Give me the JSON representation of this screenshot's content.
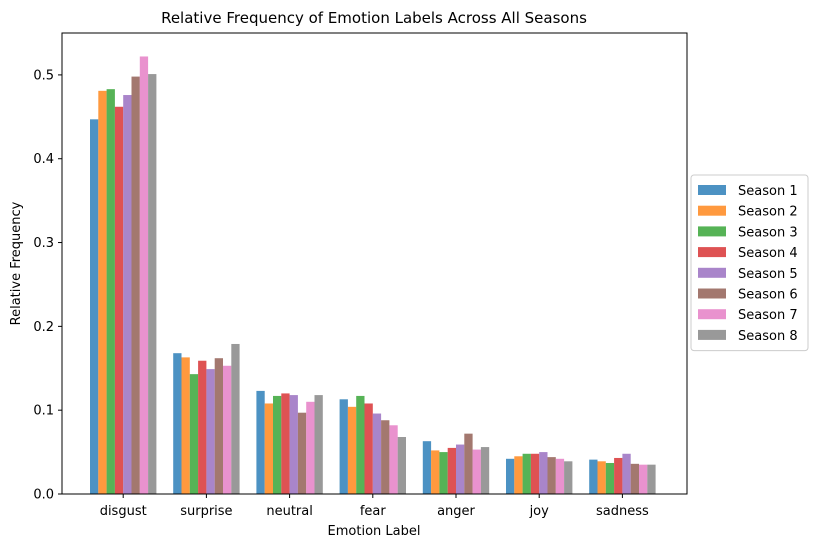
{
  "chart_data": {
    "type": "bar",
    "title": "Relative Frequency of Emotion Labels Across All Seasons",
    "xlabel": "Emotion Label",
    "ylabel": "Relative Frequency",
    "ylim": [
      0,
      0.55
    ],
    "yticks": [
      0.0,
      0.1,
      0.2,
      0.3,
      0.4,
      0.5
    ],
    "ytick_labels": [
      "0.0",
      "0.1",
      "0.2",
      "0.3",
      "0.4",
      "0.5"
    ],
    "grid": false,
    "legend_position": "outside-right",
    "categories": [
      "disgust",
      "surprise",
      "neutral",
      "fear",
      "anger",
      "joy",
      "sadness"
    ],
    "series": [
      {
        "name": "Season 1",
        "color": "#1f77b4",
        "values": [
          0.447,
          0.168,
          0.123,
          0.113,
          0.063,
          0.042,
          0.041
        ]
      },
      {
        "name": "Season 2",
        "color": "#ff7f0e",
        "values": [
          0.481,
          0.163,
          0.108,
          0.104,
          0.052,
          0.045,
          0.039
        ]
      },
      {
        "name": "Season 3",
        "color": "#2ca02c",
        "values": [
          0.483,
          0.143,
          0.117,
          0.117,
          0.05,
          0.048,
          0.037
        ]
      },
      {
        "name": "Season 4",
        "color": "#d62728",
        "values": [
          0.462,
          0.159,
          0.12,
          0.108,
          0.055,
          0.048,
          0.043
        ]
      },
      {
        "name": "Season 5",
        "color": "#9467bd",
        "values": [
          0.476,
          0.149,
          0.118,
          0.096,
          0.059,
          0.05,
          0.048
        ]
      },
      {
        "name": "Season 6",
        "color": "#8c564b",
        "values": [
          0.498,
          0.162,
          0.097,
          0.088,
          0.072,
          0.044,
          0.036
        ]
      },
      {
        "name": "Season 7",
        "color": "#e377c2",
        "values": [
          0.522,
          0.153,
          0.11,
          0.082,
          0.053,
          0.042,
          0.035
        ]
      },
      {
        "name": "Season 8",
        "color": "#7f7f7f",
        "values": [
          0.501,
          0.179,
          0.118,
          0.068,
          0.056,
          0.039,
          0.035
        ]
      }
    ]
  }
}
